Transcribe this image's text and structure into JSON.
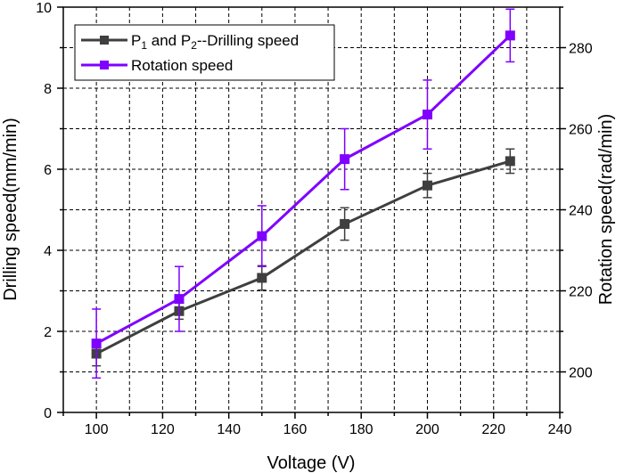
{
  "chart_data": {
    "type": "line",
    "xlabel": "Voltage (V)",
    "ylabel_left": "Drilling speed(mm/min)",
    "ylabel_right": "Rotation speed(rad/min)",
    "xlim": [
      90,
      240
    ],
    "ylim_left": [
      0,
      10
    ],
    "ylim_right": [
      190,
      290
    ],
    "x_ticks": [
      100,
      120,
      140,
      160,
      180,
      200,
      220,
      240
    ],
    "y_left_ticks": [
      0,
      2,
      4,
      6,
      8,
      10
    ],
    "y_right_ticks": [
      200,
      220,
      240,
      260,
      280
    ],
    "grid": true,
    "legend_position": "top-left",
    "series": [
      {
        "name_main": "P",
        "name_sub1": "1",
        "name_mid": " and P",
        "name_sub2": "2",
        "name_rest": "--Drilling speed",
        "axis": "left",
        "color": "#3f3f3f",
        "marker": "square",
        "x": [
          100,
          125,
          150,
          175,
          200,
          225
        ],
        "y": [
          1.45,
          2.5,
          3.32,
          4.65,
          5.6,
          6.2
        ],
        "err": [
          0.3,
          0.2,
          0.3,
          0.4,
          0.3,
          0.3
        ]
      },
      {
        "name": "Rotation speed",
        "axis": "right",
        "color": "#7f00ff",
        "marker": "square",
        "x": [
          100,
          125,
          150,
          175,
          200,
          225
        ],
        "y": [
          207,
          218,
          233.5,
          252.5,
          263.5,
          283
        ],
        "err": [
          8.5,
          8,
          7.5,
          7.5,
          8.5,
          6.5
        ]
      }
    ]
  }
}
